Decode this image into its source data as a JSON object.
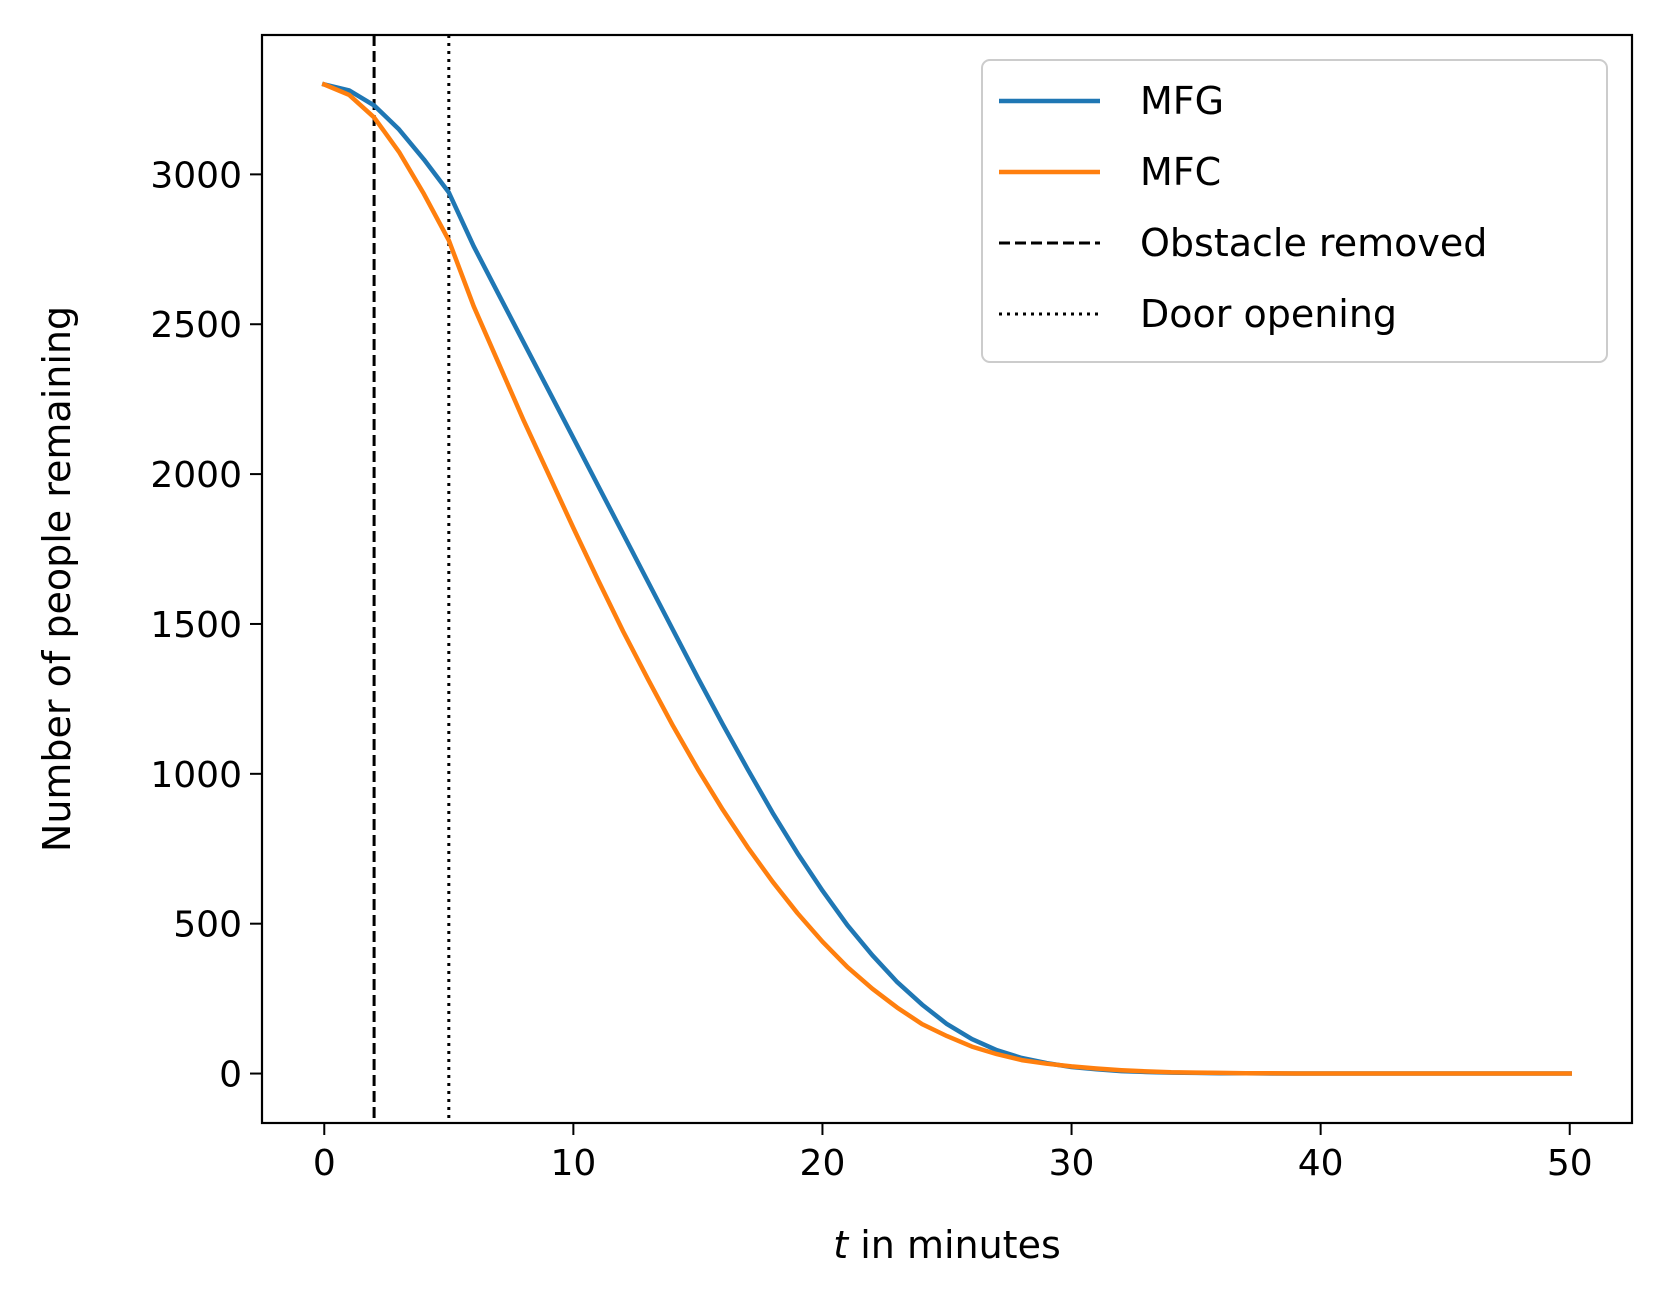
{
  "chart_data": {
    "type": "line",
    "title": "",
    "xlabel": {
      "var": "t",
      "rest": " in minutes"
    },
    "ylabel": "Number of people remaining",
    "xlim": [
      -2.5,
      52.5
    ],
    "ylim": [
      -165,
      3465
    ],
    "xticks": [
      0,
      10,
      20,
      30,
      40,
      50
    ],
    "yticks": [
      0,
      500,
      1000,
      1500,
      2000,
      2500,
      3000
    ],
    "grid": false,
    "legend_position": "top-right",
    "series": [
      {
        "name": "MFG",
        "color": "#1f77b4",
        "style": "solid",
        "x": [
          0,
          1,
          2,
          3,
          4,
          5,
          6,
          7,
          8,
          9,
          10,
          11,
          12,
          13,
          14,
          15,
          16,
          17,
          18,
          19,
          20,
          21,
          22,
          23,
          24,
          25,
          26,
          27,
          28,
          29,
          30,
          31,
          32,
          33,
          34,
          35,
          36,
          37,
          38,
          39,
          40,
          41,
          42,
          43,
          44,
          45,
          46,
          47,
          48,
          49,
          50
        ],
        "y": [
          3300,
          3280,
          3230,
          3150,
          3050,
          2940,
          2760,
          2600,
          2440,
          2280,
          2120,
          1960,
          1800,
          1640,
          1480,
          1320,
          1165,
          1015,
          870,
          735,
          610,
          495,
          395,
          305,
          230,
          165,
          115,
          78,
          52,
          35,
          22,
          14,
          8,
          5,
          3,
          2,
          1,
          1,
          0,
          0,
          0,
          0,
          0,
          0,
          0,
          0,
          0,
          0,
          0,
          0,
          0
        ]
      },
      {
        "name": "MFC",
        "color": "#ff7f0e",
        "style": "solid",
        "x": [
          0,
          1,
          2,
          3,
          4,
          5,
          6,
          7,
          8,
          9,
          10,
          11,
          12,
          13,
          14,
          15,
          16,
          17,
          18,
          19,
          20,
          21,
          22,
          23,
          24,
          25,
          26,
          27,
          28,
          29,
          30,
          31,
          32,
          33,
          34,
          35,
          36,
          37,
          38,
          39,
          40,
          41,
          42,
          43,
          44,
          45,
          46,
          47,
          48,
          49,
          50
        ],
        "y": [
          3300,
          3265,
          3190,
          3075,
          2935,
          2780,
          2560,
          2370,
          2180,
          2000,
          1820,
          1645,
          1475,
          1315,
          1160,
          1015,
          880,
          755,
          640,
          535,
          440,
          355,
          283,
          220,
          165,
          125,
          90,
          65,
          45,
          33,
          24,
          17,
          11,
          7,
          4,
          3,
          2,
          1,
          1,
          0,
          0,
          0,
          0,
          0,
          0,
          0,
          0,
          0,
          0,
          0,
          0
        ]
      },
      {
        "name": "Obstacle removed",
        "color": "#000000",
        "style": "dashed",
        "vline": 2
      },
      {
        "name": "Door opening",
        "color": "#000000",
        "style": "dotted",
        "vline": 5
      }
    ]
  }
}
